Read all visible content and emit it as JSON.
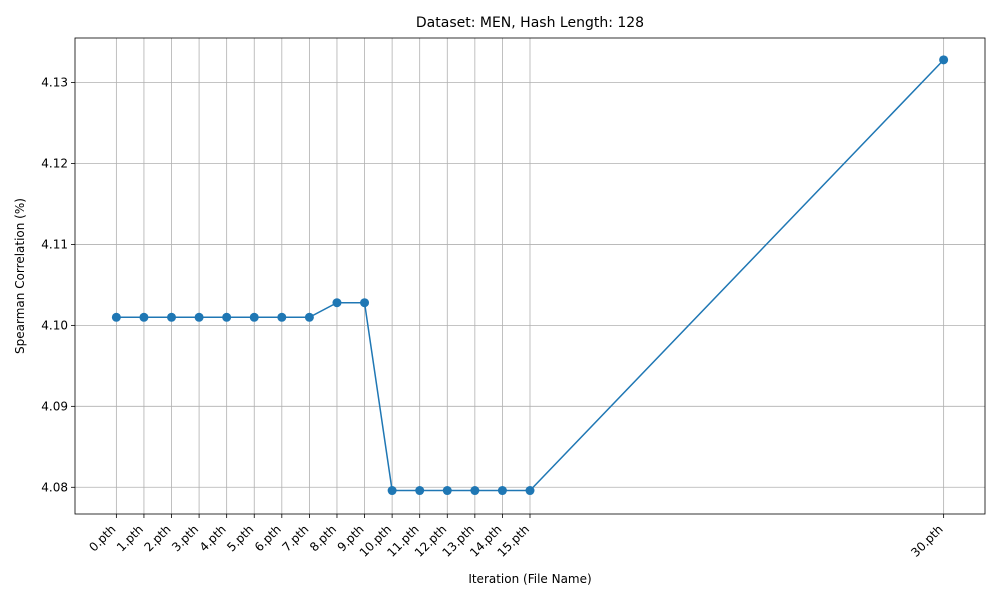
{
  "chart_data": {
    "type": "line",
    "title": "Dataset: MEN, Hash Length: 128",
    "xlabel": "Iteration (File Name)",
    "ylabel": "Spearman Correlation (%)",
    "x": [
      0,
      1,
      2,
      3,
      4,
      5,
      6,
      7,
      8,
      9,
      10,
      11,
      12,
      13,
      14,
      15,
      30
    ],
    "categories": [
      "0.pth",
      "1.pth",
      "2.pth",
      "3.pth",
      "4.pth",
      "5.pth",
      "6.pth",
      "7.pth",
      "8.pth",
      "9.pth",
      "10.pth",
      "11.pth",
      "12.pth",
      "13.pth",
      "14.pth",
      "15.pth",
      "30.pth"
    ],
    "values": [
      4.101,
      4.101,
      4.101,
      4.101,
      4.101,
      4.101,
      4.101,
      4.101,
      4.1028,
      4.1028,
      4.0796,
      4.0796,
      4.0796,
      4.0796,
      4.0796,
      4.0796,
      4.1328
    ],
    "xlim": [
      -1.5,
      31.5
    ],
    "ylim": [
      4.0767,
      4.1355
    ],
    "yticks": [
      4.08,
      4.09,
      4.1,
      4.11,
      4.12,
      4.13
    ],
    "ytick_labels": [
      "4.08",
      "4.09",
      "4.10",
      "4.11",
      "4.12",
      "4.13"
    ],
    "grid": true,
    "marker": "circle",
    "color": "#1f77b4"
  }
}
